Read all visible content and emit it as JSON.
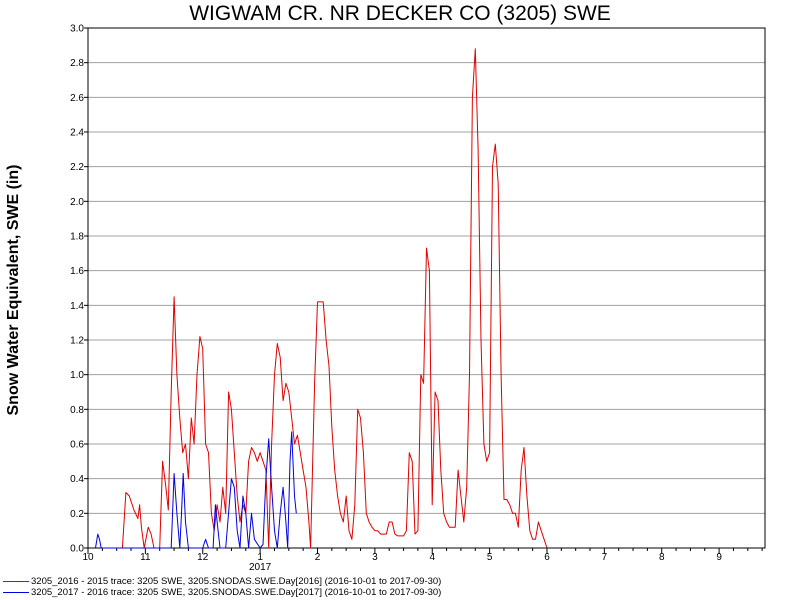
{
  "chart_data": {
    "type": "line",
    "title": "WIGWAM CR. NR DECKER CO (3205) SWE",
    "ylabel": "Snow Water Equivalent, SWE (in)",
    "xlabel": "",
    "ylim": [
      0,
      3.0
    ],
    "y_ticks": [
      "0.0",
      "0.2",
      "0.4",
      "0.6",
      "0.8",
      "1.0",
      "1.2",
      "1.4",
      "1.6",
      "1.8",
      "2.0",
      "2.2",
      "2.4",
      "2.6",
      "2.8",
      "3.0"
    ],
    "x_range_months": [
      0,
      11.8
    ],
    "x_ticks": [
      {
        "pos": 0,
        "label": "10"
      },
      {
        "pos": 1,
        "label": "11"
      },
      {
        "pos": 2,
        "label": "12"
      },
      {
        "pos": 3,
        "label": "1"
      },
      {
        "pos": 4,
        "label": "2"
      },
      {
        "pos": 5,
        "label": "3"
      },
      {
        "pos": 6,
        "label": "4"
      },
      {
        "pos": 7,
        "label": "5"
      },
      {
        "pos": 8,
        "label": "6"
      },
      {
        "pos": 9,
        "label": "7"
      },
      {
        "pos": 10,
        "label": "8"
      },
      {
        "pos": 11,
        "label": "9"
      }
    ],
    "year_label": {
      "pos": 3,
      "label": "2017"
    },
    "grid": true,
    "legend_position": "bottom",
    "series": [
      {
        "name": "3205_2016 - 2015 trace: 3205 SWE, 3205.SNODAS.SWE.Day[2016] (2016-10-01 to 2017-09-30)",
        "color": "#e00000",
        "points": [
          [
            0.6,
            0.0
          ],
          [
            0.66,
            0.32
          ],
          [
            0.72,
            0.3
          ],
          [
            0.8,
            0.22
          ],
          [
            0.87,
            0.17
          ],
          [
            0.9,
            0.25
          ],
          [
            0.93,
            0.12
          ],
          [
            0.98,
            0.0
          ],
          [
            1.05,
            0.12
          ],
          [
            1.1,
            0.08
          ],
          [
            1.15,
            0.0
          ],
          [
            1.25,
            0.0
          ],
          [
            1.3,
            0.5
          ],
          [
            1.35,
            0.37
          ],
          [
            1.4,
            0.22
          ],
          [
            1.45,
            0.9
          ],
          [
            1.5,
            1.45
          ],
          [
            1.55,
            1.0
          ],
          [
            1.6,
            0.75
          ],
          [
            1.65,
            0.55
          ],
          [
            1.7,
            0.6
          ],
          [
            1.75,
            0.4
          ],
          [
            1.8,
            0.75
          ],
          [
            1.85,
            0.6
          ],
          [
            1.9,
            1.0
          ],
          [
            1.95,
            1.22
          ],
          [
            2.0,
            1.15
          ],
          [
            2.05,
            0.6
          ],
          [
            2.1,
            0.55
          ],
          [
            2.15,
            0.2
          ],
          [
            2.2,
            0.1
          ],
          [
            2.25,
            0.25
          ],
          [
            2.3,
            0.15
          ],
          [
            2.35,
            0.35
          ],
          [
            2.4,
            0.2
          ],
          [
            2.45,
            0.9
          ],
          [
            2.5,
            0.8
          ],
          [
            2.55,
            0.55
          ],
          [
            2.6,
            0.3
          ],
          [
            2.65,
            0.15
          ],
          [
            2.7,
            0.25
          ],
          [
            2.75,
            0.2
          ],
          [
            2.8,
            0.5
          ],
          [
            2.85,
            0.58
          ],
          [
            2.9,
            0.55
          ],
          [
            2.95,
            0.5
          ],
          [
            3.0,
            0.55
          ],
          [
            3.05,
            0.5
          ],
          [
            3.1,
            0.45
          ],
          [
            3.15,
            0.0
          ],
          [
            3.2,
            0.6
          ],
          [
            3.25,
            1.0
          ],
          [
            3.3,
            1.18
          ],
          [
            3.35,
            1.1
          ],
          [
            3.4,
            0.85
          ],
          [
            3.45,
            0.95
          ],
          [
            3.5,
            0.9
          ],
          [
            3.55,
            0.75
          ],
          [
            3.6,
            0.6
          ],
          [
            3.65,
            0.65
          ],
          [
            3.7,
            0.55
          ],
          [
            3.75,
            0.45
          ],
          [
            3.8,
            0.35
          ],
          [
            3.85,
            0.15
          ],
          [
            3.88,
            0.0
          ],
          [
            3.92,
            0.55
          ],
          [
            3.95,
            0.95
          ],
          [
            4.0,
            1.42
          ],
          [
            4.1,
            1.42
          ],
          [
            4.15,
            1.2
          ],
          [
            4.2,
            1.05
          ],
          [
            4.25,
            0.7
          ],
          [
            4.3,
            0.45
          ],
          [
            4.35,
            0.3
          ],
          [
            4.4,
            0.2
          ],
          [
            4.45,
            0.15
          ],
          [
            4.5,
            0.3
          ],
          [
            4.55,
            0.1
          ],
          [
            4.6,
            0.05
          ],
          [
            4.65,
            0.25
          ],
          [
            4.7,
            0.8
          ],
          [
            4.75,
            0.75
          ],
          [
            4.8,
            0.55
          ],
          [
            4.85,
            0.2
          ],
          [
            4.9,
            0.15
          ],
          [
            4.95,
            0.12
          ],
          [
            5.0,
            0.1
          ],
          [
            5.05,
            0.1
          ],
          [
            5.1,
            0.08
          ],
          [
            5.2,
            0.08
          ],
          [
            5.25,
            0.15
          ],
          [
            5.3,
            0.15
          ],
          [
            5.35,
            0.08
          ],
          [
            5.4,
            0.07
          ],
          [
            5.5,
            0.07
          ],
          [
            5.55,
            0.1
          ],
          [
            5.6,
            0.55
          ],
          [
            5.65,
            0.5
          ],
          [
            5.7,
            0.08
          ],
          [
            5.75,
            0.1
          ],
          [
            5.8,
            1.0
          ],
          [
            5.85,
            0.95
          ],
          [
            5.9,
            1.73
          ],
          [
            5.95,
            1.6
          ],
          [
            6.0,
            0.25
          ],
          [
            6.05,
            0.9
          ],
          [
            6.1,
            0.85
          ],
          [
            6.15,
            0.45
          ],
          [
            6.2,
            0.2
          ],
          [
            6.25,
            0.15
          ],
          [
            6.3,
            0.12
          ],
          [
            6.4,
            0.12
          ],
          [
            6.45,
            0.45
          ],
          [
            6.5,
            0.3
          ],
          [
            6.55,
            0.15
          ],
          [
            6.6,
            0.35
          ],
          [
            6.65,
            1.0
          ],
          [
            6.7,
            2.6
          ],
          [
            6.75,
            2.88
          ],
          [
            6.8,
            2.3
          ],
          [
            6.85,
            1.2
          ],
          [
            6.9,
            0.6
          ],
          [
            6.95,
            0.5
          ],
          [
            7.0,
            0.55
          ],
          [
            7.05,
            2.2
          ],
          [
            7.1,
            2.33
          ],
          [
            7.15,
            2.1
          ],
          [
            7.2,
            1.0
          ],
          [
            7.25,
            0.28
          ],
          [
            7.3,
            0.28
          ],
          [
            7.35,
            0.25
          ],
          [
            7.4,
            0.2
          ],
          [
            7.45,
            0.2
          ],
          [
            7.5,
            0.12
          ],
          [
            7.55,
            0.45
          ],
          [
            7.6,
            0.58
          ],
          [
            7.65,
            0.3
          ],
          [
            7.7,
            0.1
          ],
          [
            7.75,
            0.05
          ],
          [
            7.8,
            0.05
          ],
          [
            7.85,
            0.15
          ],
          [
            7.9,
            0.1
          ],
          [
            7.95,
            0.05
          ],
          [
            8.0,
            0.0
          ]
        ]
      },
      {
        "name": "3205_2017 - 2016 trace: 3205 SWE, 3205.SNODAS.SWE.Day[2017] (2016-10-01 to 2017-09-30)",
        "color": "#0000e0",
        "points": [
          [
            0.13,
            0.0
          ],
          [
            0.17,
            0.08
          ],
          [
            0.2,
            0.05
          ],
          [
            0.23,
            0.0
          ],
          [
            1.45,
            0.0
          ],
          [
            1.5,
            0.43
          ],
          [
            1.55,
            0.2
          ],
          [
            1.6,
            0.0
          ],
          [
            1.63,
            0.2
          ],
          [
            1.66,
            0.43
          ],
          [
            1.7,
            0.15
          ],
          [
            1.75,
            0.0
          ],
          [
            2.0,
            0.0
          ],
          [
            2.05,
            0.05
          ],
          [
            2.1,
            0.0
          ],
          [
            2.18,
            0.0
          ],
          [
            2.22,
            0.25
          ],
          [
            2.26,
            0.12
          ],
          [
            2.3,
            0.0
          ],
          [
            2.4,
            0.0
          ],
          [
            2.5,
            0.4
          ],
          [
            2.55,
            0.35
          ],
          [
            2.6,
            0.1
          ],
          [
            2.65,
            0.0
          ],
          [
            2.7,
            0.3
          ],
          [
            2.75,
            0.2
          ],
          [
            2.8,
            0.0
          ],
          [
            2.85,
            0.2
          ],
          [
            2.9,
            0.05
          ],
          [
            3.0,
            0.0
          ],
          [
            3.05,
            0.02
          ],
          [
            3.1,
            0.4
          ],
          [
            3.15,
            0.63
          ],
          [
            3.2,
            0.35
          ],
          [
            3.25,
            0.1
          ],
          [
            3.3,
            0.0
          ],
          [
            3.35,
            0.2
          ],
          [
            3.4,
            0.35
          ],
          [
            3.45,
            0.15
          ],
          [
            3.48,
            0.0
          ],
          [
            3.52,
            0.5
          ],
          [
            3.55,
            0.67
          ],
          [
            3.6,
            0.3
          ],
          [
            3.63,
            0.2
          ]
        ]
      }
    ]
  }
}
